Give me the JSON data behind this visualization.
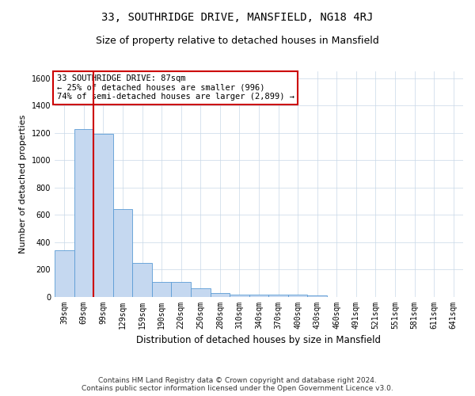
{
  "title": "33, SOUTHRIDGE DRIVE, MANSFIELD, NG18 4RJ",
  "subtitle": "Size of property relative to detached houses in Mansfield",
  "xlabel": "Distribution of detached houses by size in Mansfield",
  "ylabel": "Number of detached properties",
  "categories": [
    "39sqm",
    "69sqm",
    "99sqm",
    "129sqm",
    "159sqm",
    "190sqm",
    "220sqm",
    "250sqm",
    "280sqm",
    "310sqm",
    "340sqm",
    "370sqm",
    "400sqm",
    "430sqm",
    "460sqm",
    "491sqm",
    "521sqm",
    "551sqm",
    "581sqm",
    "611sqm",
    "641sqm"
  ],
  "values": [
    340,
    1230,
    1190,
    645,
    250,
    110,
    110,
    65,
    30,
    20,
    15,
    15,
    20,
    10,
    0,
    0,
    0,
    0,
    0,
    0,
    0
  ],
  "bar_color": "#c5d8f0",
  "bar_edge_color": "#5b9bd5",
  "vline_x_index": 1,
  "vline_color": "#cc0000",
  "ylim": [
    0,
    1650
  ],
  "yticks": [
    0,
    200,
    400,
    600,
    800,
    1000,
    1200,
    1400,
    1600
  ],
  "annotation_text": "33 SOUTHRIDGE DRIVE: 87sqm\n← 25% of detached houses are smaller (996)\n74% of semi-detached houses are larger (2,899) →",
  "annotation_box_color": "#ffffff",
  "annotation_box_edge": "#cc0000",
  "footer_text": "Contains HM Land Registry data © Crown copyright and database right 2024.\nContains public sector information licensed under the Open Government Licence v3.0.",
  "title_fontsize": 10,
  "subtitle_fontsize": 9,
  "xlabel_fontsize": 8.5,
  "ylabel_fontsize": 8,
  "tick_fontsize": 7,
  "annotation_fontsize": 7.5,
  "footer_fontsize": 6.5
}
